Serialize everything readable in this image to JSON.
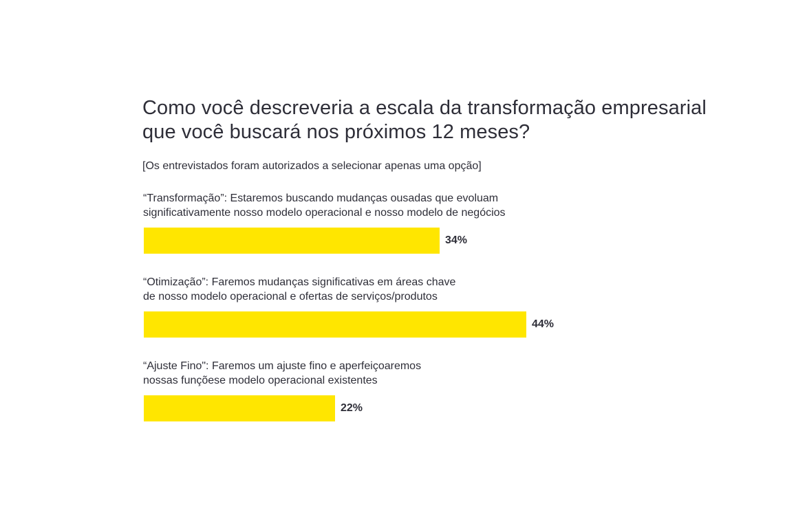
{
  "chart_data": {
    "type": "bar",
    "orientation": "horizontal",
    "title": "Como você descreveria a escala da transformação empresarial que você buscará nos próximos 12 meses?",
    "subtitle": "[Os entrevistados foram autorizados a selecionar apenas uma opção]",
    "categories": [
      "“Transformação”: Estaremos buscando mudanças ousadas que evoluam significativamente nosso modelo operacional e nosso modelo de negócios",
      "“Otimização”: Faremos mudanças significativas em áreas chave de nosso modelo operacional e ofertas de serviços/produtos",
      "“Ajuste Fino\": Faremos um ajuste fino e aperfeiçoaremos nossas funçõese modelo operacional existentes"
    ],
    "category_lines": [
      [
        "“Transformação”: Estaremos buscando mudanças ousadas que evoluam",
        "significativamente nosso modelo operacional e nosso modelo de negócios"
      ],
      [
        "“Otimização”: Faremos mudanças significativas em áreas chave",
        "de nosso modelo operacional e ofertas de serviços/produtos"
      ],
      [
        "“Ajuste Fino\": Faremos um ajuste fino e aperfeiçoaremos",
        "nossas funçõese modelo operacional existentes"
      ]
    ],
    "values": [
      34,
      44,
      22
    ],
    "value_labels": [
      "34%",
      "44%",
      "22%"
    ],
    "unit": "%",
    "xlim": [
      0,
      56
    ],
    "bar_color": "#ffe600",
    "text_color": "#2e2e38",
    "grid": false,
    "legend": "none"
  }
}
